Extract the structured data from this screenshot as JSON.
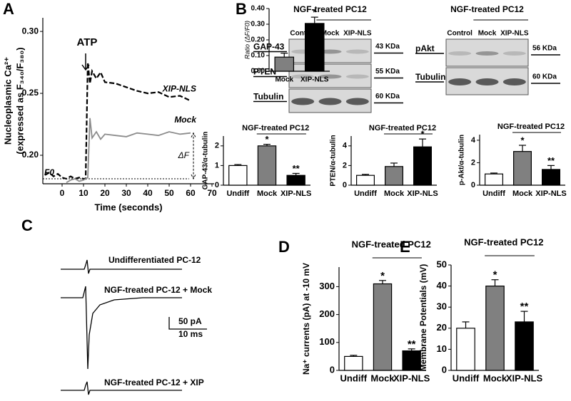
{
  "panels": [
    "A",
    "B",
    "C",
    "D",
    "E"
  ],
  "blots": [
    {
      "title": "NGF-treated PC12",
      "lanes": [
        "Control",
        "Mock",
        "XIP-NLS"
      ],
      "rows": [
        {
          "label": "GAP-43",
          "size": "43 KDa"
        },
        {
          "label": "PTEN",
          "size": "55 KDa"
        },
        {
          "label": "Tubulin",
          "size": "60 KDa"
        }
      ]
    },
    {
      "title": "NGF-treated PC12",
      "lanes": [
        "Control",
        "Mock",
        "XIP-NLS"
      ],
      "rows": [
        {
          "label": "pAkt",
          "size": "56 KDa"
        },
        {
          "label": "Tubulin",
          "size": "60 KDa"
        }
      ]
    }
  ],
  "traces": {
    "labels": [
      "Undifferentiated PC-12",
      "NGF-treated PC-12 + Mock",
      "NGF-treated PC-12 + XIP"
    ],
    "scale": [
      "50 pA",
      "10 ms"
    ]
  },
  "chart_data": [
    {
      "type": "line",
      "ylabel": [
        "Nucleoplasmic Ca²⁺",
        "(expressed as F₃₄₀/F₃₈₀)"
      ],
      "xlabel": "Time (seconds)",
      "annotations": [
        "ATP",
        "F0",
        "ΔF"
      ],
      "x": [
        -8,
        -6,
        -4,
        -2,
        0,
        2,
        4,
        6,
        8,
        10,
        11,
        12,
        13,
        14,
        16,
        18,
        20,
        25,
        30,
        35,
        40,
        45,
        50,
        55,
        60
      ],
      "series": [
        {
          "name": "XIP-NLS",
          "color": "#000000",
          "dashed": true,
          "values": [
            0.184,
            0.186,
            0.183,
            0.185,
            0.182,
            0.181,
            0.183,
            0.181,
            0.182,
            0.181,
            0.181,
            0.275,
            0.258,
            0.268,
            0.262,
            0.267,
            0.259,
            0.258,
            0.255,
            0.252,
            0.25,
            0.251,
            0.247,
            0.248,
            0.244
          ]
        },
        {
          "name": "Mock",
          "color": "#8c8c8c",
          "dashed": false,
          "values": [
            null,
            null,
            null,
            null,
            null,
            0.178,
            0.18,
            0.181,
            0.179,
            0.18,
            0.181,
            0.182,
            0.23,
            0.214,
            0.219,
            0.213,
            0.217,
            0.216,
            0.215,
            0.218,
            0.217,
            0.216,
            0.219,
            0.217,
            0.218
          ]
        }
      ],
      "reference_line": 0.181,
      "xlim": [
        -9,
        71
      ],
      "xticks": [
        0,
        10,
        20,
        30,
        40,
        50,
        60,
        70
      ],
      "ylim": [
        0.177,
        0.311
      ],
      "yticks": [
        {
          "value": 0.2,
          "label": "0.20"
        },
        {
          "value": 0.25,
          "label": "0.25"
        },
        {
          "value": 0.3,
          "label": "0.30"
        }
      ]
    },
    {
      "type": "bar",
      "ylabel": "Ratio (ΔF/F0)",
      "categories": [
        "Mock",
        "XIP-NLS"
      ],
      "values": [
        0.09,
        0.305
      ],
      "errors": [
        0.025,
        0.04
      ],
      "colors": [
        "#808080",
        "#000000"
      ],
      "significance": [
        null,
        "*"
      ],
      "ylim": [
        0,
        0.4
      ],
      "yticks": [
        {
          "value": 0,
          "label": "0.00"
        },
        {
          "value": 0.1,
          "label": "0.10"
        },
        {
          "value": 0.2,
          "label": "0.20"
        },
        {
          "value": 0.3,
          "label": "0.30"
        },
        {
          "value": 0.4,
          "label": "0.40"
        }
      ]
    },
    {
      "type": "bar",
      "ylabel": "GAP-43/α-tubulin",
      "group_label": "NGF-treated PC12",
      "categories": [
        "Undiff",
        "Mock",
        "XIP-NLS"
      ],
      "values": [
        1,
        2,
        0.5
      ],
      "errors": [
        0.05,
        0.08,
        0.1
      ],
      "colors": [
        "#ffffff",
        "#808080",
        "#000000"
      ],
      "significance": [
        null,
        "*",
        "**"
      ],
      "ylim": [
        0,
        2.5
      ],
      "yticks": [
        0,
        1,
        2
      ]
    },
    {
      "type": "bar",
      "ylabel": "PTEN/α-tubulin",
      "group_label": "NGF-treated PC12",
      "categories": [
        "Undiff",
        "Mock",
        "XIP-NLS"
      ],
      "values": [
        1,
        1.9,
        3.9
      ],
      "errors": [
        0.1,
        0.35,
        0.8
      ],
      "colors": [
        "#ffffff",
        "#808080",
        "#000000"
      ],
      "significance": [
        null,
        null,
        "*"
      ],
      "ylim": [
        0,
        5
      ],
      "yticks": [
        0,
        2,
        4
      ]
    },
    {
      "type": "bar",
      "ylabel": "p-Akt/α-tubulin",
      "group_label": "NGF-treated PC12",
      "categories": [
        "Undiff",
        "Mock",
        "XIP-NLS"
      ],
      "values": [
        1,
        3,
        1.4
      ],
      "errors": [
        0.08,
        0.55,
        0.35
      ],
      "colors": [
        "#ffffff",
        "#808080",
        "#000000"
      ],
      "significance": [
        null,
        "*",
        "**"
      ],
      "ylim": [
        0,
        4.5
      ],
      "yticks": [
        0,
        2,
        4
      ]
    },
    {
      "type": "bar",
      "ylabel": "Na⁺ currents (pA) at -10 mV",
      "group_label": "NGF-treated PC12",
      "categories": [
        "Undiff",
        "Mock",
        "XIP-NLS"
      ],
      "values": [
        50,
        310,
        70
      ],
      "errors": [
        4,
        12,
        7
      ],
      "colors": [
        "#ffffff",
        "#808080",
        "#000000"
      ],
      "significance": [
        null,
        "*",
        "**"
      ],
      "ylim": [
        0,
        370
      ],
      "yticks": [
        0,
        100,
        200,
        300
      ]
    },
    {
      "type": "bar",
      "ylabel": "Membrane Potentials (mV)",
      "group_label": "NGF-treated PC12",
      "categories": [
        "Undiff",
        "Mock",
        "XIP-NLS"
      ],
      "values": [
        20,
        40,
        23
      ],
      "errors": [
        3,
        3,
        5
      ],
      "colors": [
        "#ffffff",
        "#808080",
        "#000000"
      ],
      "significance": [
        null,
        "*",
        "**"
      ],
      "ylim": [
        0,
        50
      ],
      "yticks": [
        0,
        10,
        20,
        30,
        40,
        50
      ]
    }
  ]
}
